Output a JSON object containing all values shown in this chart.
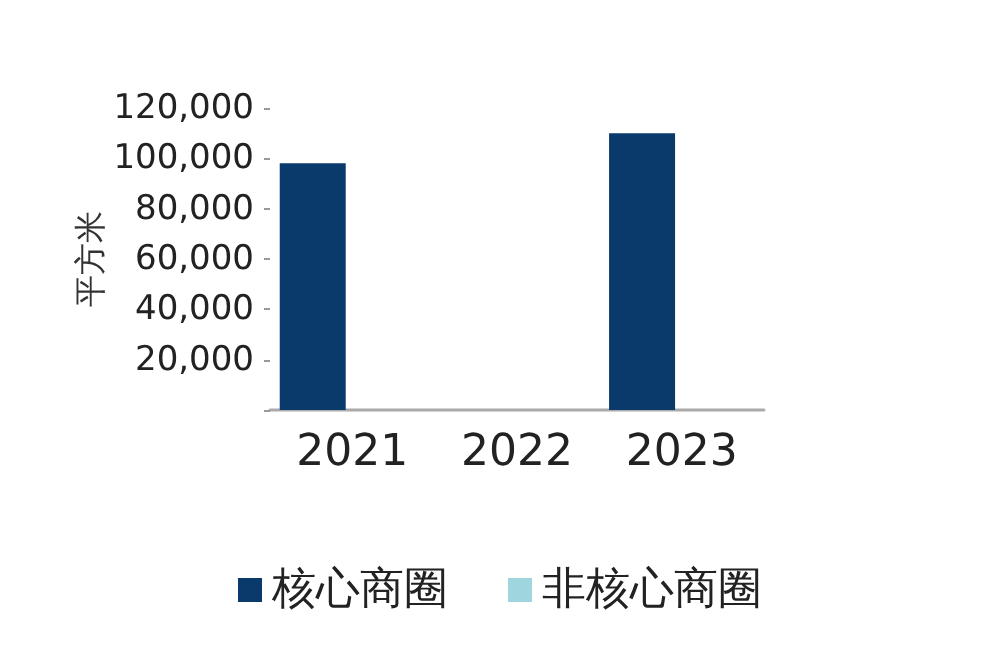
{
  "chart_data": {
    "type": "bar",
    "ylabel": "平方米",
    "categories": [
      "2021",
      "2022",
      "2023"
    ],
    "series": [
      {
        "name": "核心商圈",
        "color": "#0a3a6b",
        "values": [
          98000,
          null,
          110000
        ]
      },
      {
        "name": "非核心商圈",
        "color": "#9fd5df",
        "values": [
          null,
          null,
          null
        ]
      }
    ],
    "ylim": [
      0,
      120000
    ],
    "yticks": [
      {
        "value": 0,
        "label": null
      },
      {
        "value": 20000,
        "label": "20,000"
      },
      {
        "value": 40000,
        "label": "40,000"
      },
      {
        "value": 60000,
        "label": "60,000"
      },
      {
        "value": 80000,
        "label": "80,000"
      },
      {
        "value": 100000,
        "label": "100,000"
      },
      {
        "value": 120000,
        "label": "120,000"
      }
    ],
    "grid": false,
    "legend": "bottom"
  }
}
